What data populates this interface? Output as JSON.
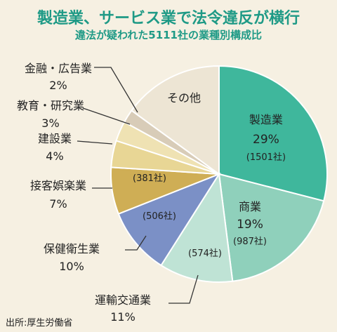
{
  "source": "出所:厚生労働省",
  "chart_data": {
    "type": "pie",
    "title": "製造業、サービス業で法令違反が横行",
    "subtitle": "違法が疑われた5111社の業種別構成比",
    "slices": [
      {
        "name": "製造業",
        "pct_label": "29%",
        "count_label": "(1501社)",
        "value": 29,
        "color": "#3fb79c"
      },
      {
        "name": "商業",
        "pct_label": "19%",
        "count_label": "(987社)",
        "value": 19,
        "color": "#8fd0bb"
      },
      {
        "name": "運輸交通業",
        "pct_label": "11%",
        "count_label": "(574社)",
        "value": 11,
        "color": "#bfe3d5"
      },
      {
        "name": "保健衛生業",
        "pct_label": "10%",
        "count_label": "(506社)",
        "value": 10,
        "color": "#7b90c6"
      },
      {
        "name": "接客娯楽業",
        "pct_label": "7%",
        "count_label": "(381社)",
        "value": 7,
        "color": "#cfae55"
      },
      {
        "name": "建設業",
        "pct_label": "4%",
        "count_label": "",
        "value": 4,
        "color": "#e8d695"
      },
      {
        "name": "教育・研究業",
        "pct_label": "3%",
        "count_label": "",
        "value": 3,
        "color": "#efe2b3"
      },
      {
        "name": "金融・広告業",
        "pct_label": "2%",
        "count_label": "",
        "value": 2,
        "color": "#d8ccb8"
      },
      {
        "name": "その他",
        "pct_label": "",
        "count_label": "",
        "value": 15,
        "color": "#ede5d4"
      }
    ]
  }
}
